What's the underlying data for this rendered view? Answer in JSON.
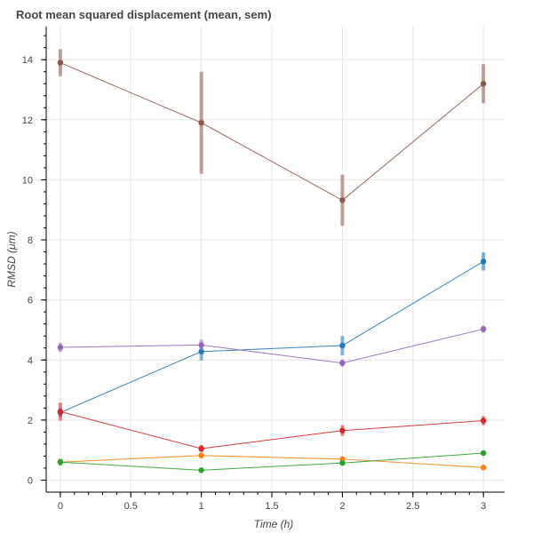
{
  "chart_data": {
    "type": "line",
    "title": "Root mean squared displacement (mean, sem)",
    "xlabel": "Time (h)",
    "ylabel": "RMSD (μm)",
    "xlim": [
      -0.1,
      3.15
    ],
    "ylim": [
      -0.4,
      15.1
    ],
    "xticks": [
      "0",
      "0.5",
      "1",
      "1.5",
      "2",
      "2.5",
      "3"
    ],
    "yticks": [
      "0",
      "2",
      "4",
      "6",
      "8",
      "10",
      "12",
      "14"
    ],
    "grid": true,
    "x": [
      0,
      1,
      2,
      3
    ],
    "series": [
      {
        "color": "#1f77b4",
        "values": [
          2.25,
          4.28,
          4.48,
          7.28
        ],
        "sem": [
          0.15,
          0.3,
          0.32,
          0.3
        ]
      },
      {
        "color": "#ff7f0e",
        "values": [
          0.6,
          0.82,
          0.7,
          0.42
        ],
        "sem": [
          0.05,
          0.06,
          0.05,
          0.04
        ]
      },
      {
        "color": "#2ca02c",
        "values": [
          0.6,
          0.33,
          0.57,
          0.9
        ],
        "sem": [
          0.12,
          0.05,
          0.06,
          0.06
        ]
      },
      {
        "color": "#d62728",
        "values": [
          2.28,
          1.05,
          1.65,
          1.98
        ],
        "sem": [
          0.3,
          0.12,
          0.18,
          0.15
        ]
      },
      {
        "color": "#9467bd",
        "values": [
          4.42,
          4.5,
          3.9,
          5.03
        ],
        "sem": [
          0.15,
          0.18,
          0.12,
          0.12
        ]
      },
      {
        "color": "#8c564b",
        "values": [
          13.9,
          11.9,
          9.32,
          13.2
        ],
        "sem": [
          0.45,
          1.7,
          0.85,
          0.65
        ]
      }
    ]
  }
}
